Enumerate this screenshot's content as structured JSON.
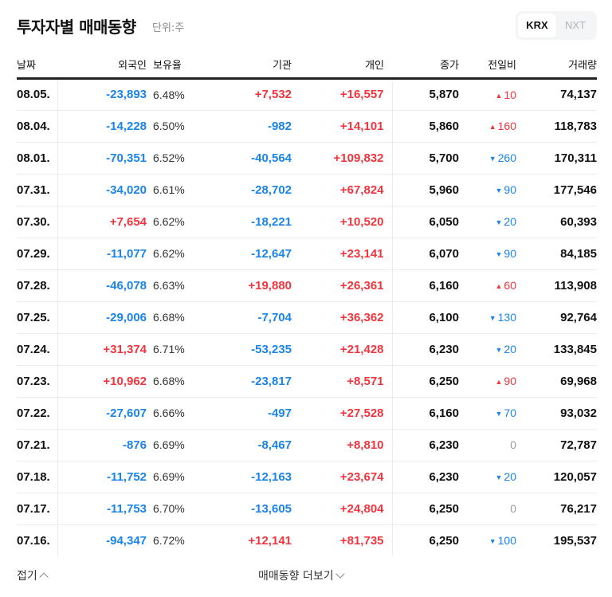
{
  "header": {
    "title": "투자자별 매매동향",
    "unit": "단위:주",
    "market_toggle": [
      {
        "label": "KRX",
        "active": true
      },
      {
        "label": "NXT",
        "active": false
      }
    ]
  },
  "table": {
    "columns": {
      "date": "날짜",
      "foreign": "외국인",
      "holding": "보유율",
      "institution": "기관",
      "individual": "개인",
      "close": "종가",
      "change": "전일비",
      "volume": "거래량"
    },
    "rows": [
      {
        "date": "08.05.",
        "foreign": "-23,893",
        "foreign_dir": "down",
        "holding": "6.48%",
        "institution": "+7,532",
        "institution_dir": "up",
        "individual": "+16,557",
        "individual_dir": "up",
        "close": "5,870",
        "change": "10",
        "change_dir": "up",
        "change_icon": "▲",
        "volume": "74,137"
      },
      {
        "date": "08.04.",
        "foreign": "-14,228",
        "foreign_dir": "down",
        "holding": "6.50%",
        "institution": "-982",
        "institution_dir": "down",
        "individual": "+14,101",
        "individual_dir": "up",
        "close": "5,860",
        "change": "160",
        "change_dir": "up",
        "change_icon": "▲",
        "volume": "118,783"
      },
      {
        "date": "08.01.",
        "foreign": "-70,351",
        "foreign_dir": "down",
        "holding": "6.52%",
        "institution": "-40,564",
        "institution_dir": "down",
        "individual": "+109,832",
        "individual_dir": "up",
        "close": "5,700",
        "change": "260",
        "change_dir": "down",
        "change_icon": "▼",
        "volume": "170,311"
      },
      {
        "date": "07.31.",
        "foreign": "-34,020",
        "foreign_dir": "down",
        "holding": "6.61%",
        "institution": "-28,702",
        "institution_dir": "down",
        "individual": "+67,824",
        "individual_dir": "up",
        "close": "5,960",
        "change": "90",
        "change_dir": "down",
        "change_icon": "▼",
        "volume": "177,546"
      },
      {
        "date": "07.30.",
        "foreign": "+7,654",
        "foreign_dir": "up",
        "holding": "6.62%",
        "institution": "-18,221",
        "institution_dir": "down",
        "individual": "+10,520",
        "individual_dir": "up",
        "close": "6,050",
        "change": "20",
        "change_dir": "down",
        "change_icon": "▼",
        "volume": "60,393"
      },
      {
        "date": "07.29.",
        "foreign": "-11,077",
        "foreign_dir": "down",
        "holding": "6.62%",
        "institution": "-12,647",
        "institution_dir": "down",
        "individual": "+23,141",
        "individual_dir": "up",
        "close": "6,070",
        "change": "90",
        "change_dir": "down",
        "change_icon": "▼",
        "volume": "84,185"
      },
      {
        "date": "07.28.",
        "foreign": "-46,078",
        "foreign_dir": "down",
        "holding": "6.63%",
        "institution": "+19,880",
        "institution_dir": "up",
        "individual": "+26,361",
        "individual_dir": "up",
        "close": "6,160",
        "change": "60",
        "change_dir": "up",
        "change_icon": "▲",
        "volume": "113,908"
      },
      {
        "date": "07.25.",
        "foreign": "-29,006",
        "foreign_dir": "down",
        "holding": "6.68%",
        "institution": "-7,704",
        "institution_dir": "down",
        "individual": "+36,362",
        "individual_dir": "up",
        "close": "6,100",
        "change": "130",
        "change_dir": "down",
        "change_icon": "▼",
        "volume": "92,764"
      },
      {
        "date": "07.24.",
        "foreign": "+31,374",
        "foreign_dir": "up",
        "holding": "6.71%",
        "institution": "-53,235",
        "institution_dir": "down",
        "individual": "+21,428",
        "individual_dir": "up",
        "close": "6,230",
        "change": "20",
        "change_dir": "down",
        "change_icon": "▼",
        "volume": "133,845"
      },
      {
        "date": "07.23.",
        "foreign": "+10,962",
        "foreign_dir": "up",
        "holding": "6.68%",
        "institution": "-23,817",
        "institution_dir": "down",
        "individual": "+8,571",
        "individual_dir": "up",
        "close": "6,250",
        "change": "90",
        "change_dir": "up",
        "change_icon": "▲",
        "volume": "69,968"
      },
      {
        "date": "07.22.",
        "foreign": "-27,607",
        "foreign_dir": "down",
        "holding": "6.66%",
        "institution": "-497",
        "institution_dir": "down",
        "individual": "+27,528",
        "individual_dir": "up",
        "close": "6,160",
        "change": "70",
        "change_dir": "down",
        "change_icon": "▼",
        "volume": "93,032"
      },
      {
        "date": "07.21.",
        "foreign": "-876",
        "foreign_dir": "down",
        "holding": "6.69%",
        "institution": "-8,467",
        "institution_dir": "down",
        "individual": "+8,810",
        "individual_dir": "up",
        "close": "6,230",
        "change": "0",
        "change_dir": "flat",
        "change_icon": "",
        "volume": "72,787"
      },
      {
        "date": "07.18.",
        "foreign": "-11,752",
        "foreign_dir": "down",
        "holding": "6.69%",
        "institution": "-12,163",
        "institution_dir": "down",
        "individual": "+23,674",
        "individual_dir": "up",
        "close": "6,230",
        "change": "20",
        "change_dir": "down",
        "change_icon": "▼",
        "volume": "120,057"
      },
      {
        "date": "07.17.",
        "foreign": "-11,753",
        "foreign_dir": "down",
        "holding": "6.70%",
        "institution": "-13,605",
        "institution_dir": "down",
        "individual": "+24,804",
        "individual_dir": "up",
        "close": "6,250",
        "change": "0",
        "change_dir": "flat",
        "change_icon": "",
        "volume": "76,217"
      },
      {
        "date": "07.16.",
        "foreign": "-94,347",
        "foreign_dir": "down",
        "holding": "6.72%",
        "institution": "+12,141",
        "institution_dir": "up",
        "individual": "+81,735",
        "individual_dir": "up",
        "close": "6,250",
        "change": "100",
        "change_dir": "down",
        "change_icon": "▼",
        "volume": "195,537"
      }
    ]
  },
  "footer": {
    "fold_label": "접기",
    "more_label": "매매동향 더보기"
  },
  "colors": {
    "up": "#f0353e",
    "down": "#1a84e8",
    "flat": "#999999"
  }
}
